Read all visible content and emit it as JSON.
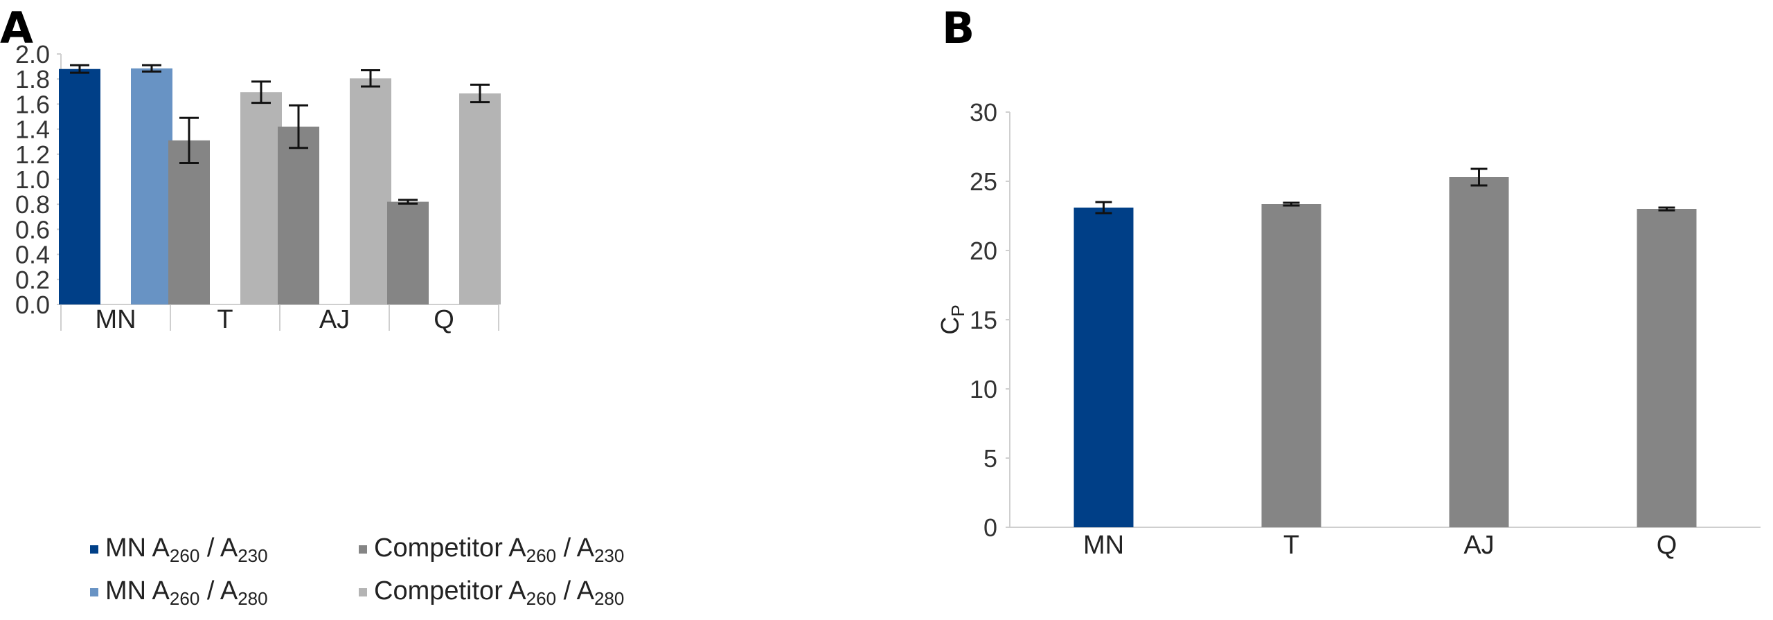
{
  "chart_data": [
    {
      "panel": "A",
      "type": "bar",
      "categories": [
        "MN",
        "T",
        "AJ",
        "Q"
      ],
      "ylim": [
        0,
        2.0
      ],
      "yticks": [
        "0.0",
        "0.2",
        "0.4",
        "0.6",
        "0.8",
        "1.0",
        "1.2",
        "1.4",
        "1.6",
        "1.8",
        "2.0"
      ],
      "grid": false,
      "legend_position": "bottom",
      "series": [
        {
          "name": "MN A260 / A230",
          "name_parts": [
            "MN A",
            "260",
            " / A",
            "230"
          ],
          "color": "#003f87",
          "values": [
            1.88,
            null,
            null,
            null
          ],
          "errors": [
            0.03,
            null,
            null,
            null
          ]
        },
        {
          "name": "MN A260 / A280",
          "name_parts": [
            "MN A",
            "260",
            " / A",
            "280"
          ],
          "color": "#6893c4",
          "values": [
            1.885,
            null,
            null,
            null
          ],
          "errors": [
            0.025,
            null,
            null,
            null
          ]
        },
        {
          "name": "Competitor A260 / A230",
          "name_parts": [
            "Competitor A",
            "260",
            " / A",
            "230"
          ],
          "color": "#858585",
          "values": [
            null,
            1.31,
            1.42,
            0.82
          ],
          "errors": [
            null,
            0.18,
            0.17,
            0.015
          ]
        },
        {
          "name": "Competitor A260 / A280",
          "name_parts": [
            "Competitor A",
            "260",
            " / A",
            "280"
          ],
          "color": "#b4b4b4",
          "values": [
            null,
            1.695,
            1.805,
            1.685
          ],
          "errors": [
            null,
            0.085,
            0.065,
            0.07
          ]
        }
      ]
    },
    {
      "panel": "B",
      "type": "bar",
      "categories": [
        "MN",
        "T",
        "AJ",
        "Q"
      ],
      "ylabel": "Cp",
      "ylabel_parts": [
        "C",
        "P"
      ],
      "ylim": [
        0,
        30
      ],
      "yticks": [
        "0",
        "5",
        "10",
        "15",
        "20",
        "25",
        "30"
      ],
      "grid": false,
      "values": [
        23.1,
        23.35,
        25.3,
        23.0
      ],
      "errors": [
        0.4,
        0.1,
        0.6,
        0.1
      ],
      "colors": [
        "#003f87",
        "#858585",
        "#858585",
        "#858585"
      ]
    }
  ],
  "panel_labels": {
    "a": "A",
    "b": "B"
  }
}
